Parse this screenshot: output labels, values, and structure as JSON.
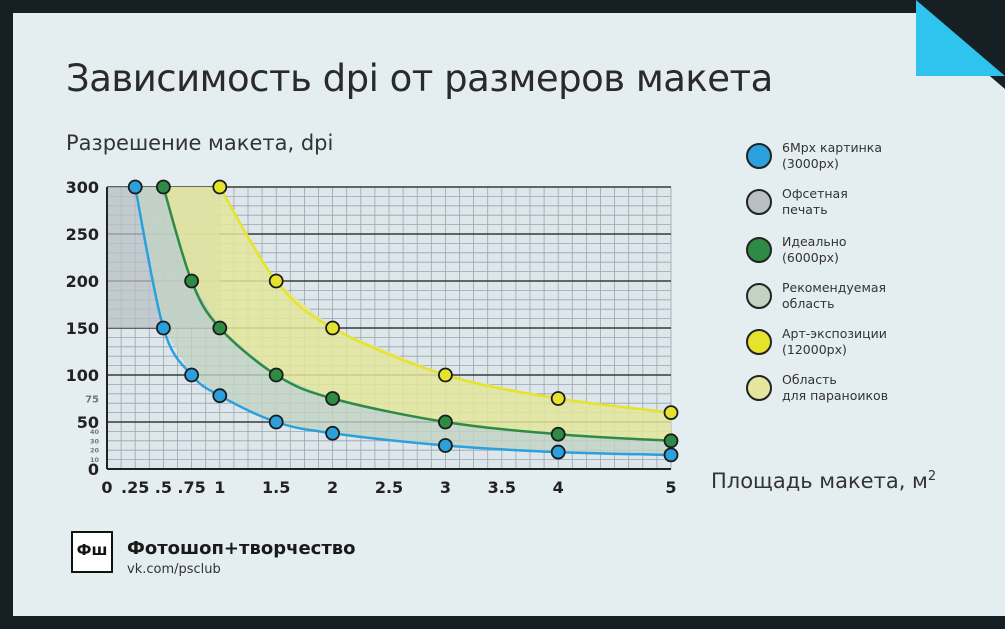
{
  "header": {
    "title": "Зависимость dpi от размеров макета"
  },
  "brand": {
    "logo_text": "Фш",
    "name": "Фотошоп+творчество",
    "url": "vk.com/psclub"
  },
  "colors": {
    "background": "#e4edf0",
    "frame": "#151f24",
    "corner": "#2fc4ee",
    "blue": "#2aa0dd",
    "gray": "#b8c0c6",
    "green": "#2e8b45",
    "light_green": "#c2d3c4",
    "yellow": "#e6e32c",
    "light_yellow": "#e3e69c"
  },
  "legend": [
    {
      "lines": [
        "6Mpx картинка",
        "(3000px)"
      ],
      "color": "#2aa0dd"
    },
    {
      "lines": [
        "Офсетная",
        "печать"
      ],
      "color": "#b8c0c6"
    },
    {
      "lines": [
        "Идеально",
        "(6000px)"
      ],
      "color": "#2e8b45"
    },
    {
      "lines": [
        "Рекомендуемая",
        "область"
      ],
      "color": "#c2d3c4"
    },
    {
      "lines": [
        "Арт-экспозиции",
        "(12000px)"
      ],
      "color": "#e6e32c"
    },
    {
      "lines": [
        "Область",
        "для параноиков"
      ],
      "color": "#e3e69c"
    }
  ],
  "chart_data": {
    "type": "line",
    "xlabel": "Площадь макета, м",
    "xlabel_sup": "2",
    "ylabel": "Разрешение макета, dpi",
    "xlim": [
      0,
      5
    ],
    "ylim": [
      0,
      300
    ],
    "grid": true,
    "x_ticks": [
      "0",
      ".25",
      ".5",
      ".75",
      "1",
      "1.5",
      "2",
      "2.5",
      "3",
      "3.5",
      "4",
      "5"
    ],
    "x_tick_values": [
      0,
      0.25,
      0.5,
      0.75,
      1,
      1.5,
      2,
      2.5,
      3,
      3.5,
      4,
      5
    ],
    "y_ticks_major": [
      "0",
      "50",
      "100",
      "150",
      "200",
      "250",
      "300"
    ],
    "y_tick_values_major": [
      0,
      50,
      100,
      150,
      200,
      250,
      300
    ],
    "y_ticks_minor": [
      "10",
      "20",
      "30",
      "40",
      "75"
    ],
    "y_tick_values_minor": [
      10,
      20,
      30,
      40,
      75
    ],
    "series": [
      {
        "color": "#2aa0dd",
        "x": [
          0.25,
          0.5,
          0.75,
          1,
          1.5,
          2,
          3,
          4,
          5
        ],
        "y": [
          300,
          150,
          100,
          78,
          50,
          38,
          25,
          18,
          15
        ]
      },
      {
        "color": "#2e8b45",
        "x": [
          0.5,
          0.75,
          1,
          1.5,
          2,
          3,
          4,
          5
        ],
        "y": [
          300,
          200,
          150,
          100,
          75,
          50,
          37,
          30
        ]
      },
      {
        "color": "#e6e32c",
        "x": [
          1,
          1.5,
          2,
          3,
          4,
          5
        ],
        "y": [
          300,
          200,
          150,
          100,
          75,
          60
        ]
      }
    ],
    "offset_region": {
      "x": [
        0,
        1
      ],
      "y": [
        150,
        300
      ]
    }
  }
}
